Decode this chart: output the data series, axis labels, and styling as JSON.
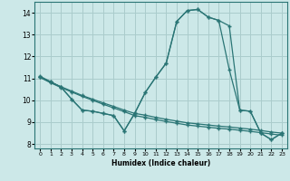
{
  "xlabel": "Humidex (Indice chaleur)",
  "xlim": [
    -0.5,
    23.5
  ],
  "ylim": [
    7.8,
    14.5
  ],
  "yticks": [
    8,
    9,
    10,
    11,
    12,
    13,
    14
  ],
  "xticks": [
    0,
    1,
    2,
    3,
    4,
    5,
    6,
    7,
    8,
    9,
    10,
    11,
    12,
    13,
    14,
    15,
    16,
    17,
    18,
    19,
    20,
    21,
    22,
    23
  ],
  "bg_color": "#cce8e8",
  "line_color": "#2a7575",
  "grid_color": "#aacccc",
  "curve1": [
    11.1,
    10.85,
    10.6,
    10.05,
    9.55,
    9.5,
    9.4,
    9.3,
    8.6,
    9.4,
    10.35,
    11.05,
    11.7,
    13.6,
    14.1,
    14.15,
    13.8,
    13.65,
    13.4,
    9.55,
    9.5,
    8.5,
    8.2,
    8.5
  ],
  "curve2": [
    11.05,
    10.85,
    10.6,
    10.05,
    9.55,
    9.5,
    9.4,
    9.3,
    8.6,
    9.4,
    10.35,
    11.05,
    11.7,
    13.6,
    14.1,
    14.15,
    13.8,
    13.65,
    11.4,
    9.55,
    9.5,
    8.5,
    8.2,
    8.5
  ],
  "curve3_x": [
    0,
    1,
    2,
    3,
    4,
    5,
    6,
    7,
    8,
    9,
    10,
    11,
    12,
    13,
    14,
    15,
    16,
    17,
    18,
    19,
    20,
    21,
    22,
    23
  ],
  "curve3_y": [
    11.05,
    10.8,
    10.58,
    10.38,
    10.18,
    10.0,
    9.82,
    9.65,
    9.48,
    9.3,
    9.22,
    9.12,
    9.03,
    8.95,
    8.87,
    8.82,
    8.77,
    8.72,
    8.68,
    8.63,
    8.58,
    8.52,
    8.46,
    8.4
  ],
  "curve4_x": [
    0,
    1,
    2,
    3,
    4,
    5,
    6,
    7,
    8,
    9,
    10,
    11,
    12,
    13,
    14,
    15,
    16,
    17,
    18,
    19,
    20,
    21,
    22,
    23
  ],
  "curve4_y": [
    11.05,
    10.82,
    10.62,
    10.42,
    10.22,
    10.05,
    9.88,
    9.72,
    9.55,
    9.4,
    9.32,
    9.22,
    9.13,
    9.05,
    8.97,
    8.92,
    8.87,
    8.82,
    8.78,
    8.73,
    8.68,
    8.62,
    8.55,
    8.5
  ]
}
